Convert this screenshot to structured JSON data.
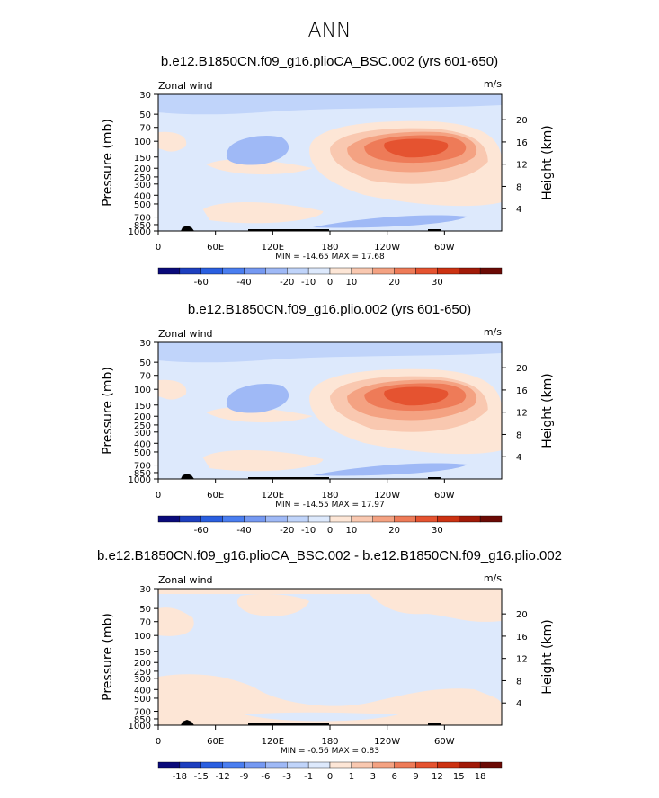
{
  "page_title": "ANN",
  "colors": {
    "neg": [
      "#0a0a7a",
      "#1d3fbf",
      "#2a5fe0",
      "#4a7ef0",
      "#7599f2",
      "#9fb9f6",
      "#c0d4fa",
      "#dde9fc"
    ],
    "pos": [
      "#fde6d6",
      "#f9c8b0",
      "#f4a282",
      "#ee7b58",
      "#e55330",
      "#cc3212",
      "#a11a08",
      "#6b0a05"
    ]
  },
  "chart_data": [
    {
      "type": "heatmap",
      "title": "b.e12.B1850CN.f09_g16.plioCA_BSC.002 (yrs 601-650)",
      "left_label": "Zonal wind",
      "units": "m/s",
      "xlabel": "",
      "ylabel": "Pressure (mb)",
      "ylabel_right": "Height (km)",
      "x_ticks": [
        "0",
        "60E",
        "120E",
        "180",
        "120W",
        "60W"
      ],
      "y_ticks": [
        "30",
        "50",
        "70",
        "100",
        "150",
        "200",
        "250",
        "300",
        "400",
        "500",
        "700",
        "850",
        "1000"
      ],
      "y_ticks_right": [
        "20",
        "16",
        "12",
        "8",
        "4"
      ],
      "min_max_text": "MIN = -14.65   MAX =  17.68",
      "colorbar_labels": [
        "-60",
        "-40",
        "-20",
        "-10",
        "0",
        "10",
        "20",
        "30"
      ]
    },
    {
      "type": "heatmap",
      "title": "b.e12.B1850CN.f09_g16.plio.002 (yrs 601-650)",
      "left_label": "Zonal wind",
      "units": "m/s",
      "xlabel": "",
      "ylabel": "Pressure (mb)",
      "ylabel_right": "Height (km)",
      "x_ticks": [
        "0",
        "60E",
        "120E",
        "180",
        "120W",
        "60W"
      ],
      "y_ticks": [
        "30",
        "50",
        "70",
        "100",
        "150",
        "200",
        "250",
        "300",
        "400",
        "500",
        "700",
        "850",
        "1000"
      ],
      "y_ticks_right": [
        "20",
        "16",
        "12",
        "8",
        "4"
      ],
      "min_max_text": "MIN = -14.55   MAX =  17.97",
      "colorbar_labels": [
        "-60",
        "-40",
        "-20",
        "-10",
        "0",
        "10",
        "20",
        "30"
      ]
    },
    {
      "type": "heatmap",
      "title": "b.e12.B1850CN.f09_g16.plioCA_BSC.002 - b.e12.B1850CN.f09_g16.plio.002",
      "left_label": "Zonal wind",
      "units": "m/s",
      "xlabel": "",
      "ylabel": "Pressure (mb)",
      "ylabel_right": "Height (km)",
      "x_ticks": [
        "0",
        "60E",
        "120E",
        "180",
        "120W",
        "60W"
      ],
      "y_ticks": [
        "30",
        "50",
        "70",
        "100",
        "150",
        "200",
        "250",
        "300",
        "400",
        "500",
        "700",
        "850",
        "1000"
      ],
      "y_ticks_right": [
        "20",
        "16",
        "12",
        "8",
        "4"
      ],
      "min_max_text": "MIN = -0.56   MAX =  0.83",
      "colorbar_labels": [
        "-18",
        "-15",
        "-12",
        "-9",
        "-6",
        "-3",
        "-1",
        "0",
        "1",
        "3",
        "6",
        "9",
        "12",
        "15",
        "18"
      ]
    }
  ]
}
